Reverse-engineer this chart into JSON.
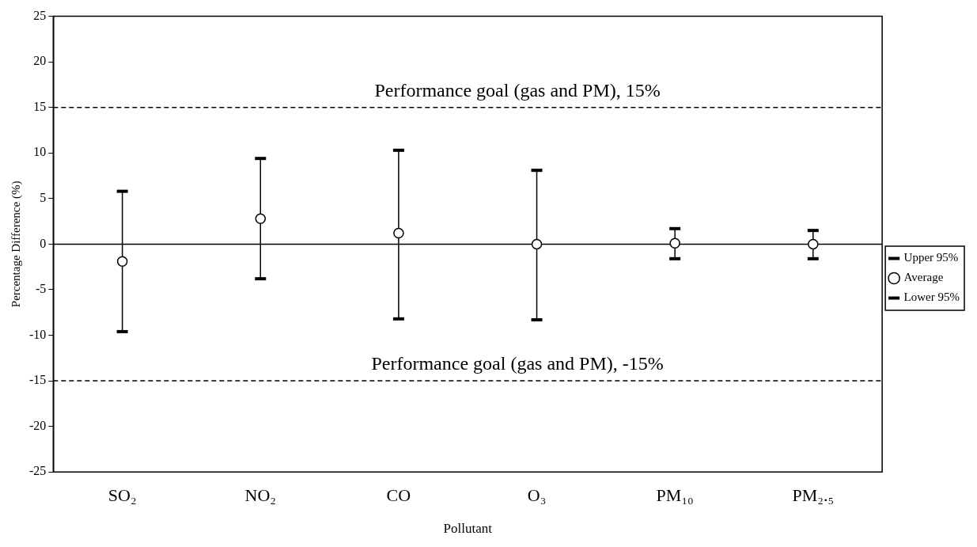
{
  "chart_data": {
    "type": "scatter",
    "xlabel": "Pollutant",
    "ylabel": "Percentage Difference (%)",
    "categories": [
      "SO₂",
      "NO₂",
      "CO",
      "O₃",
      "PM₁₀",
      "PM₂.₅"
    ],
    "series": [
      {
        "name": "Average",
        "color": "#000000",
        "marker": "circle",
        "values": [
          -1.9,
          2.8,
          1.2,
          0,
          0.1,
          0
        ],
        "errors": [
          [
            -9.6,
            5.8
          ],
          [
            -3.8,
            9.4
          ],
          [
            -8.2,
            10.3
          ],
          [
            -8.3,
            8.1
          ],
          [
            -1.6,
            1.7
          ],
          [
            -1.6,
            1.5
          ]
        ]
      }
    ],
    "annotations": [
      "Upper 95%",
      "Lower 95%"
    ],
    "ylim": [
      -25,
      25
    ],
    "yticks": [
      -25,
      -20,
      -15,
      -10,
      -5,
      0,
      5,
      10,
      15,
      20,
      25
    ],
    "ref_lines": [
      {
        "axis": "y",
        "value": 15,
        "label": "Performance goal (gas and PM), 15%",
        "line_style": "dashed",
        "color": "#000000"
      },
      {
        "axis": "y",
        "value": -15,
        "label": "Performance goal (gas and PM), -15%",
        "line_style": "dashed",
        "color": "#000000"
      }
    ],
    "grid": false,
    "legend": "right"
  }
}
